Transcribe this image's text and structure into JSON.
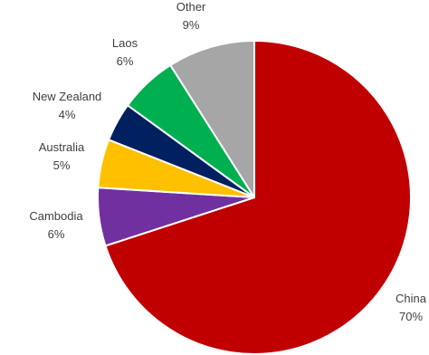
{
  "chart_data": {
    "type": "pie",
    "title": "",
    "slices": [
      {
        "label": "China",
        "value": 70,
        "value_label": "70%",
        "color": "#C00000"
      },
      {
        "label": "Cambodia",
        "value": 6,
        "value_label": "6%",
        "color": "#7030A0"
      },
      {
        "label": "Australia",
        "value": 5,
        "value_label": "5%",
        "color": "#FFC000"
      },
      {
        "label": "New Zealand",
        "value": 4,
        "value_label": "4%",
        "color": "#002060"
      },
      {
        "label": "Laos",
        "value": 6,
        "value_label": "6%",
        "color": "#00B050"
      },
      {
        "label": "Other",
        "value": 9,
        "value_label": "9%",
        "color": "#A6A6A6"
      }
    ],
    "start": "12 o'clock",
    "direction": "clockwise",
    "legend": "none",
    "slice_border_color": "#FFFFFF"
  }
}
